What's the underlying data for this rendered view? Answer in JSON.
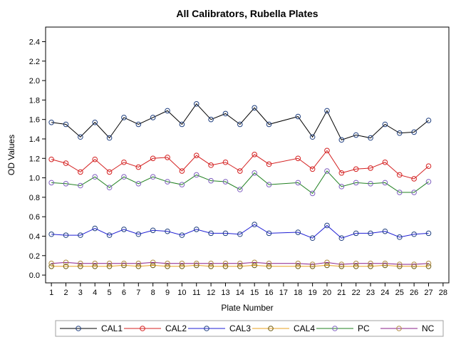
{
  "chart_data": {
    "type": "line",
    "title": "All Calibrators, Rubella Plates",
    "xlabel": "Plate Number",
    "ylabel": "OD Values",
    "xlim": [
      0.6,
      28.4
    ],
    "ylim": [
      -0.08,
      2.55
    ],
    "xticks": [
      1,
      2,
      3,
      4,
      5,
      6,
      7,
      8,
      9,
      10,
      11,
      12,
      13,
      14,
      15,
      16,
      17,
      18,
      19,
      20,
      21,
      22,
      23,
      24,
      25,
      26,
      27,
      28
    ],
    "xtick_labels": [
      "1",
      "2",
      "3",
      "4",
      "5",
      "6",
      "7",
      "8",
      "9",
      "10",
      "11",
      "12",
      "13",
      "14",
      "15",
      "16",
      "17",
      "18",
      "19",
      "20",
      "21",
      "22",
      "23",
      "24",
      "25",
      "26",
      "27",
      "28"
    ],
    "yticks": [
      0.0,
      0.2,
      0.4,
      0.6,
      0.8,
      1.0,
      1.2,
      1.4,
      1.6,
      1.8,
      2.0,
      2.2,
      2.4
    ],
    "ytick_labels": [
      "0.0",
      "0.2",
      "0.4",
      "0.6",
      "0.8",
      "1.0",
      "1.2",
      "1.4",
      "1.6",
      "1.8",
      "2.0",
      "2.2",
      "2.4"
    ],
    "grid": false,
    "legend_position": "bottom",
    "x": [
      1,
      2,
      3,
      4,
      5,
      6,
      7,
      8,
      9,
      10,
      11,
      12,
      13,
      14,
      15,
      16,
      18,
      19,
      20,
      21,
      22,
      23,
      24,
      25,
      26,
      27
    ],
    "series": [
      {
        "name": "CAL1",
        "line_color": "#000000",
        "marker_color": "#1f3f7f",
        "values": [
          1.57,
          1.55,
          1.42,
          1.57,
          1.41,
          1.62,
          1.55,
          1.62,
          1.69,
          1.55,
          1.76,
          1.6,
          1.66,
          1.55,
          1.72,
          1.55,
          1.63,
          1.42,
          1.69,
          1.39,
          1.44,
          1.41,
          1.55,
          1.46,
          1.47,
          1.59
        ]
      },
      {
        "name": "CAL2",
        "line_color": "#d42020",
        "marker_color": "#d42020",
        "values": [
          1.19,
          1.15,
          1.06,
          1.19,
          1.06,
          1.16,
          1.11,
          1.2,
          1.21,
          1.07,
          1.23,
          1.13,
          1.16,
          1.07,
          1.24,
          1.14,
          1.2,
          1.09,
          1.28,
          1.05,
          1.09,
          1.1,
          1.16,
          1.03,
          0.99,
          1.12
        ]
      },
      {
        "name": "CAL3",
        "line_color": "#1f1fd4",
        "marker_color": "#1f3f7f",
        "values": [
          0.42,
          0.41,
          0.41,
          0.48,
          0.41,
          0.47,
          0.42,
          0.46,
          0.45,
          0.41,
          0.47,
          0.43,
          0.43,
          0.42,
          0.52,
          0.43,
          0.44,
          0.38,
          0.51,
          0.38,
          0.43,
          0.43,
          0.45,
          0.39,
          0.42,
          0.43
        ]
      },
      {
        "name": "CAL4",
        "line_color": "#e8a020",
        "marker_color": "#6b5a10",
        "values": [
          0.09,
          0.09,
          0.09,
          0.09,
          0.09,
          0.1,
          0.09,
          0.1,
          0.09,
          0.09,
          0.1,
          0.09,
          0.09,
          0.09,
          0.1,
          0.09,
          0.09,
          0.09,
          0.1,
          0.09,
          0.09,
          0.09,
          0.1,
          0.09,
          0.09,
          0.09
        ]
      },
      {
        "name": "PC",
        "line_color": "#208020",
        "marker_color": "#8060c0",
        "values": [
          0.95,
          0.94,
          0.92,
          1.01,
          0.9,
          1.01,
          0.94,
          1.01,
          0.96,
          0.93,
          1.03,
          0.97,
          0.96,
          0.88,
          1.05,
          0.93,
          0.95,
          0.84,
          1.07,
          0.91,
          0.95,
          0.94,
          0.95,
          0.85,
          0.85,
          0.96
        ]
      },
      {
        "name": "NC",
        "line_color": "#8a1f8a",
        "marker_color": "#b08a40",
        "values": [
          0.12,
          0.13,
          0.12,
          0.12,
          0.12,
          0.12,
          0.12,
          0.13,
          0.12,
          0.12,
          0.12,
          0.12,
          0.12,
          0.12,
          0.13,
          0.12,
          0.12,
          0.11,
          0.13,
          0.11,
          0.12,
          0.12,
          0.12,
          0.11,
          0.11,
          0.12
        ]
      }
    ]
  }
}
